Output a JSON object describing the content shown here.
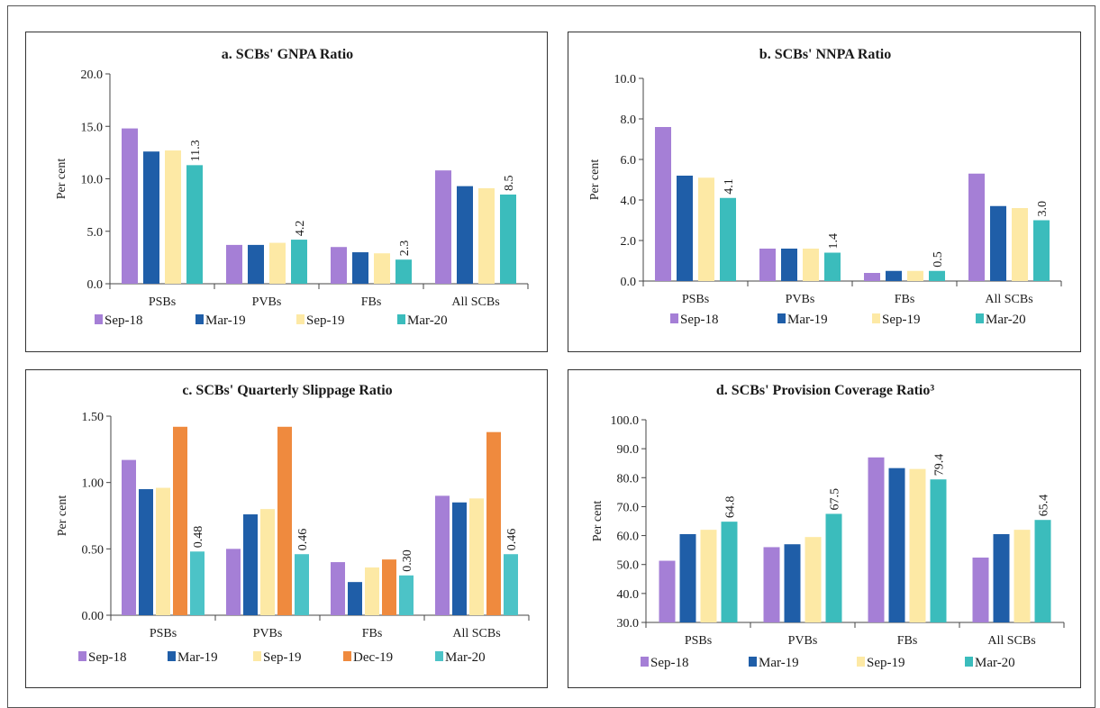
{
  "chart_data": [
    {
      "id": "a",
      "type": "bar",
      "title": "a. SCBs' GNPA Ratio",
      "ylabel": "Per cent",
      "xlabel": "",
      "ylim": [
        0,
        20
      ],
      "yticks": [
        0,
        5,
        10,
        15,
        20
      ],
      "ytick_labels": [
        "0.0",
        "5.0",
        "10.0",
        "15.0",
        "20.0"
      ],
      "grid": false,
      "legend": "bottom",
      "categories": [
        "PSBs",
        "PVBs",
        "FBs",
        "All SCBs"
      ],
      "series": [
        {
          "name": "Sep-18",
          "color": "#a57fd6",
          "values": [
            14.8,
            3.7,
            3.5,
            10.8
          ]
        },
        {
          "name": "Mar-19",
          "color": "#1f5ea8",
          "values": [
            12.6,
            3.7,
            3.0,
            9.3
          ]
        },
        {
          "name": "Sep-19",
          "color": "#fde9a5",
          "values": [
            12.7,
            3.9,
            2.9,
            9.1
          ]
        },
        {
          "name": "Mar-20",
          "color": "#3bbcbc",
          "values": [
            11.3,
            4.2,
            2.3,
            8.5
          ]
        }
      ],
      "data_labels": [
        {
          "series": 3,
          "category": 0,
          "text": "11.3"
        },
        {
          "series": 3,
          "category": 1,
          "text": "4.2"
        },
        {
          "series": 3,
          "category": 2,
          "text": "2.3"
        },
        {
          "series": 3,
          "category": 3,
          "text": "8.5"
        }
      ]
    },
    {
      "id": "b",
      "type": "bar",
      "title": "b. SCBs' NNPA Ratio",
      "ylabel": "Per cent",
      "xlabel": "",
      "ylim": [
        0,
        10
      ],
      "yticks": [
        0,
        2,
        4,
        6,
        8,
        10
      ],
      "ytick_labels": [
        "0.0",
        "2.0",
        "4.0",
        "6.0",
        "8.0",
        "10.0"
      ],
      "grid": false,
      "legend": "bottom",
      "categories": [
        "PSBs",
        "PVBs",
        "FBs",
        "All SCBs"
      ],
      "series": [
        {
          "name": "Sep-18",
          "color": "#a57fd6",
          "values": [
            7.6,
            1.6,
            0.4,
            5.3
          ]
        },
        {
          "name": "Mar-19",
          "color": "#1f5ea8",
          "values": [
            5.2,
            1.6,
            0.5,
            3.7
          ]
        },
        {
          "name": "Sep-19",
          "color": "#fde9a5",
          "values": [
            5.1,
            1.6,
            0.5,
            3.6
          ]
        },
        {
          "name": "Mar-20",
          "color": "#3bbcbc",
          "values": [
            4.1,
            1.4,
            0.5,
            3.0
          ]
        }
      ],
      "data_labels": [
        {
          "series": 3,
          "category": 0,
          "text": "4.1"
        },
        {
          "series": 3,
          "category": 1,
          "text": "1.4"
        },
        {
          "series": 3,
          "category": 2,
          "text": "0.5"
        },
        {
          "series": 3,
          "category": 3,
          "text": "3.0"
        }
      ]
    },
    {
      "id": "c",
      "type": "bar",
      "title": "c. SCBs' Quarterly Slippage Ratio",
      "ylabel": "Per cent",
      "xlabel": "",
      "ylim": [
        0,
        1.5
      ],
      "yticks": [
        0,
        0.5,
        1.0,
        1.5
      ],
      "ytick_labels": [
        "0.00",
        "0.50",
        "1.00",
        "1.50"
      ],
      "grid": false,
      "legend": "bottom",
      "categories": [
        "PSBs",
        "PVBs",
        "FBs",
        "All SCBs"
      ],
      "series": [
        {
          "name": "Sep-18",
          "color": "#a57fd6",
          "values": [
            1.17,
            0.5,
            0.4,
            0.9
          ]
        },
        {
          "name": "Mar-19",
          "color": "#1f5ea8",
          "values": [
            0.95,
            0.76,
            0.25,
            0.85
          ]
        },
        {
          "name": "Sep-19",
          "color": "#fde9a5",
          "values": [
            0.96,
            0.8,
            0.36,
            0.88
          ]
        },
        {
          "name": "Dec-19",
          "color": "#ef8a3e",
          "values": [
            1.42,
            1.42,
            0.42,
            1.38
          ]
        },
        {
          "name": "Mar-20",
          "color": "#4cc3c7",
          "values": [
            0.48,
            0.46,
            0.3,
            0.46
          ]
        }
      ],
      "data_labels": [
        {
          "series": 4,
          "category": 0,
          "text": "0.48"
        },
        {
          "series": 4,
          "category": 1,
          "text": "0.46"
        },
        {
          "series": 4,
          "category": 2,
          "text": "0.30"
        },
        {
          "series": 4,
          "category": 3,
          "text": "0.46"
        }
      ]
    },
    {
      "id": "d",
      "type": "bar",
      "title": "d. SCBs' Provision Coverage Ratio³",
      "ylabel": "Per cent",
      "xlabel": "",
      "ylim": [
        30,
        100
      ],
      "yticks": [
        30,
        40,
        50,
        60,
        70,
        80,
        90,
        100
      ],
      "ytick_labels": [
        "30.0",
        "40.0",
        "50.0",
        "60.0",
        "70.0",
        "80.0",
        "90.0",
        "100.0"
      ],
      "grid": false,
      "legend": "bottom",
      "categories": [
        "PSBs",
        "PVBs",
        "FBs",
        "All SCBs"
      ],
      "series": [
        {
          "name": "Sep-18",
          "color": "#a57fd6",
          "values": [
            51.3,
            56.0,
            87.0,
            52.4
          ]
        },
        {
          "name": "Mar-19",
          "color": "#1f5ea8",
          "values": [
            60.5,
            57.0,
            83.3,
            60.5
          ]
        },
        {
          "name": "Sep-19",
          "color": "#fde9a5",
          "values": [
            62.0,
            59.5,
            83.0,
            62.0
          ]
        },
        {
          "name": "Mar-20",
          "color": "#3bbcbc",
          "values": [
            64.8,
            67.5,
            79.4,
            65.4
          ]
        }
      ],
      "data_labels": [
        {
          "series": 3,
          "category": 0,
          "text": "64.8"
        },
        {
          "series": 3,
          "category": 1,
          "text": "67.5"
        },
        {
          "series": 3,
          "category": 2,
          "text": "79.4"
        },
        {
          "series": 3,
          "category": 3,
          "text": "65.4"
        }
      ]
    }
  ]
}
